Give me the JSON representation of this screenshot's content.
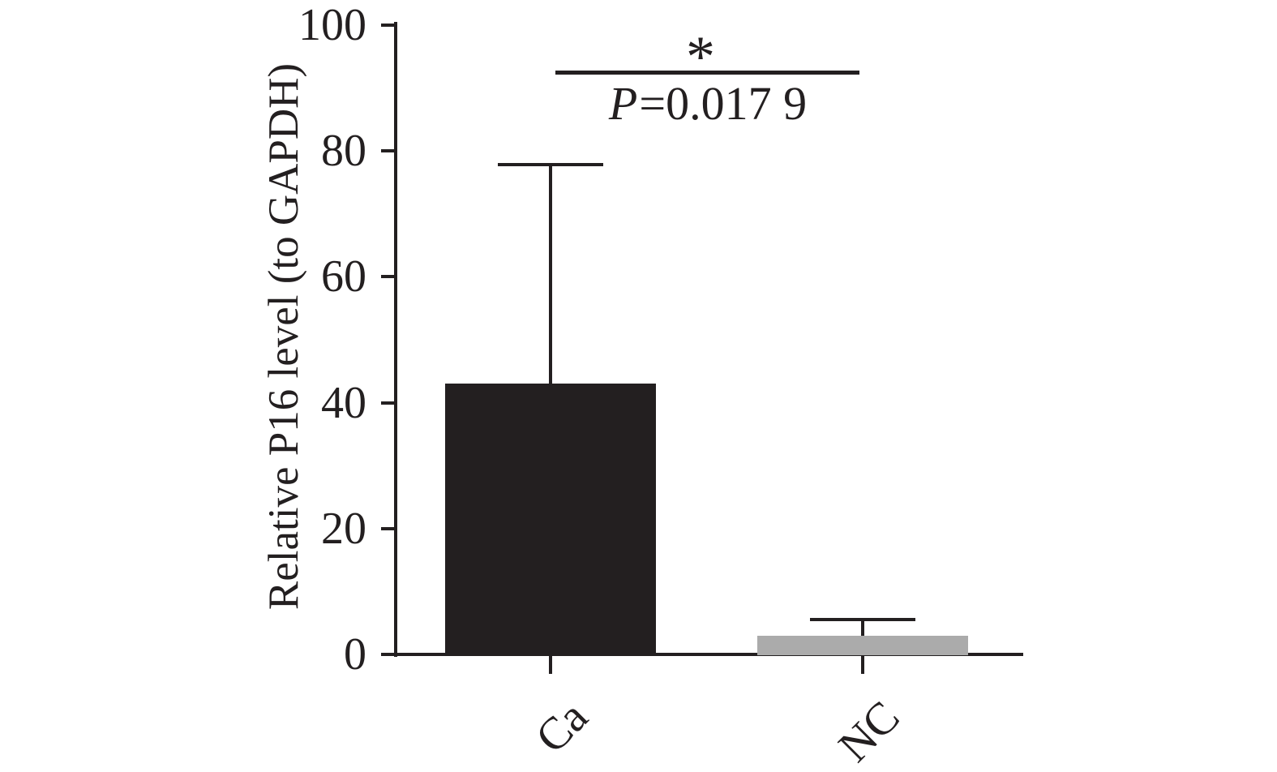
{
  "figure": {
    "background": "#ffffff",
    "ink_color": "#231f20"
  },
  "chart_data": {
    "type": "bar",
    "title": "",
    "categories": [
      "Ca",
      "NC"
    ],
    "values": [
      43,
      3
    ],
    "errors_up": [
      34.8,
      2.6
    ],
    "bar_colors": [
      "#231f20",
      "#ababab"
    ],
    "xlabel": "",
    "ylabel": "Relative P16 level (to GAPDH)",
    "yticks": [
      0,
      20,
      40,
      60,
      80,
      100
    ],
    "ylim": [
      0,
      100
    ],
    "grid": false,
    "legend": false,
    "error_bars": "upper only, capped",
    "significance": {
      "star": "*",
      "p_label": "P",
      "p_rest": "=0.017 9",
      "p_text": "P=0.017 9",
      "compared": [
        "Ca",
        "NC"
      ]
    }
  }
}
